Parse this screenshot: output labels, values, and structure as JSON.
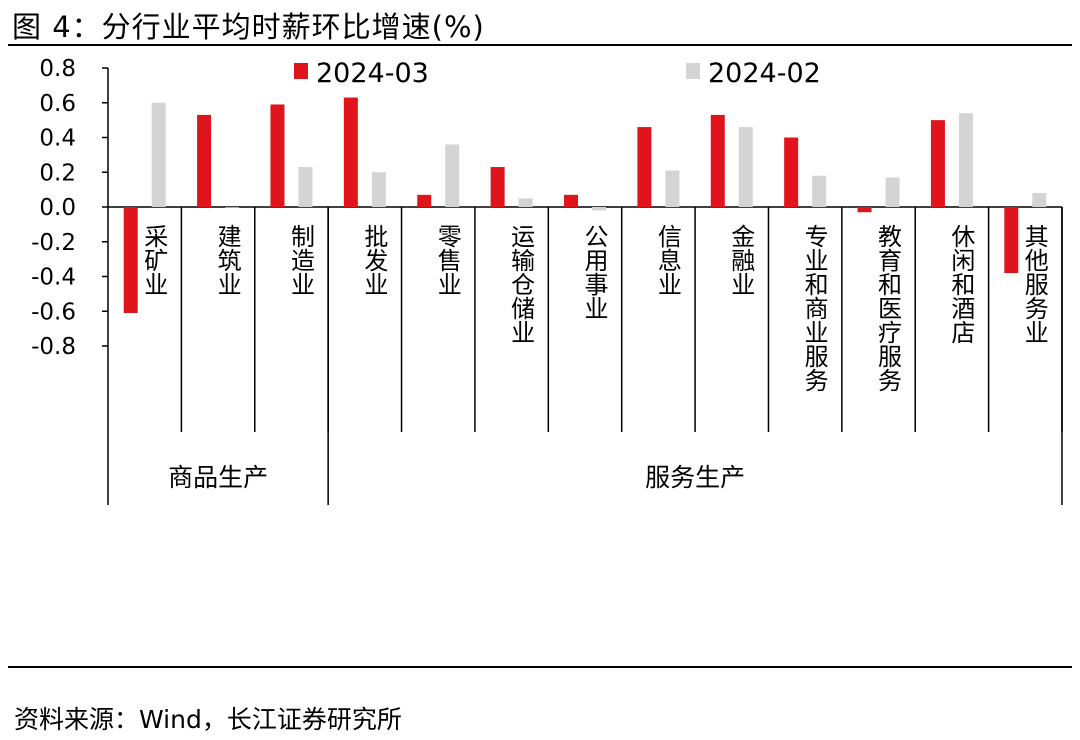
{
  "header": {
    "title": "图 4：分行业平均时薪环比增速(%)"
  },
  "footer": {
    "source": "资料来源：Wind，长江证券研究所"
  },
  "colors": {
    "series1": "#e0141b",
    "series2": "#d4d4d4",
    "axis": "#000000"
  },
  "chart_data": {
    "type": "bar",
    "title": "",
    "ylabel": "",
    "xlabel": "",
    "ylim": [
      -0.8,
      0.8
    ],
    "yticks": [
      "0.8",
      "0.6",
      "0.4",
      "0.2",
      "0.0",
      "-0.2",
      "-0.4",
      "-0.6",
      "-0.8"
    ],
    "legend_position": "top",
    "categories": [
      "采矿业",
      "建筑业",
      "制造业",
      "批发业",
      "零售业",
      "运输仓储业",
      "公用事业",
      "信息业",
      "金融业",
      "专业和商业服务",
      "教育和医疗服务",
      "休闲和酒店",
      "其他服务业"
    ],
    "groups": [
      {
        "label": "商品生产",
        "count": 3
      },
      {
        "label": "服务生产",
        "count": 10
      }
    ],
    "series": [
      {
        "name": "2024-03",
        "values": [
          -0.61,
          0.53,
          0.59,
          0.63,
          0.07,
          0.23,
          0.07,
          0.46,
          0.53,
          0.4,
          -0.03,
          0.5,
          -0.38
        ]
      },
      {
        "name": "2024-02",
        "values": [
          0.6,
          0.0,
          0.23,
          0.2,
          0.36,
          0.05,
          -0.02,
          0.21,
          0.46,
          0.18,
          0.17,
          0.54,
          0.08
        ]
      }
    ]
  }
}
